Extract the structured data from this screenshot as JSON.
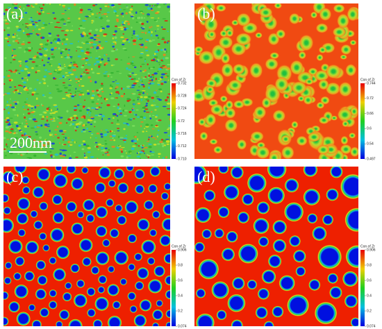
{
  "panels": [
    {
      "label": "(a)",
      "scale_bar": "200nm",
      "colorbar": {
        "title": "Con of Zr",
        "ticks": [
          "0.732",
          "0.728",
          "0.724",
          "0.72",
          "0.716",
          "0.712",
          "0.710"
        ]
      }
    },
    {
      "label": "(b)",
      "colorbar": {
        "title": "Con of Zr",
        "ticks": [
          "0.744",
          "0.72",
          "0.66",
          "0.6",
          "0.54",
          "0.497"
        ]
      }
    },
    {
      "label": "(c)",
      "colorbar": {
        "title": "Con of Zr",
        "ticks": [
          "0.906",
          "0.8",
          "0.6",
          "0.4",
          "0.2",
          "0.074"
        ]
      }
    },
    {
      "label": "(d)",
      "colorbar": {
        "title": "Con of Zr",
        "ticks": [
          "0.906",
          "0.8",
          "0.6",
          "0.4",
          "0.2",
          "0.074"
        ]
      }
    }
  ]
}
